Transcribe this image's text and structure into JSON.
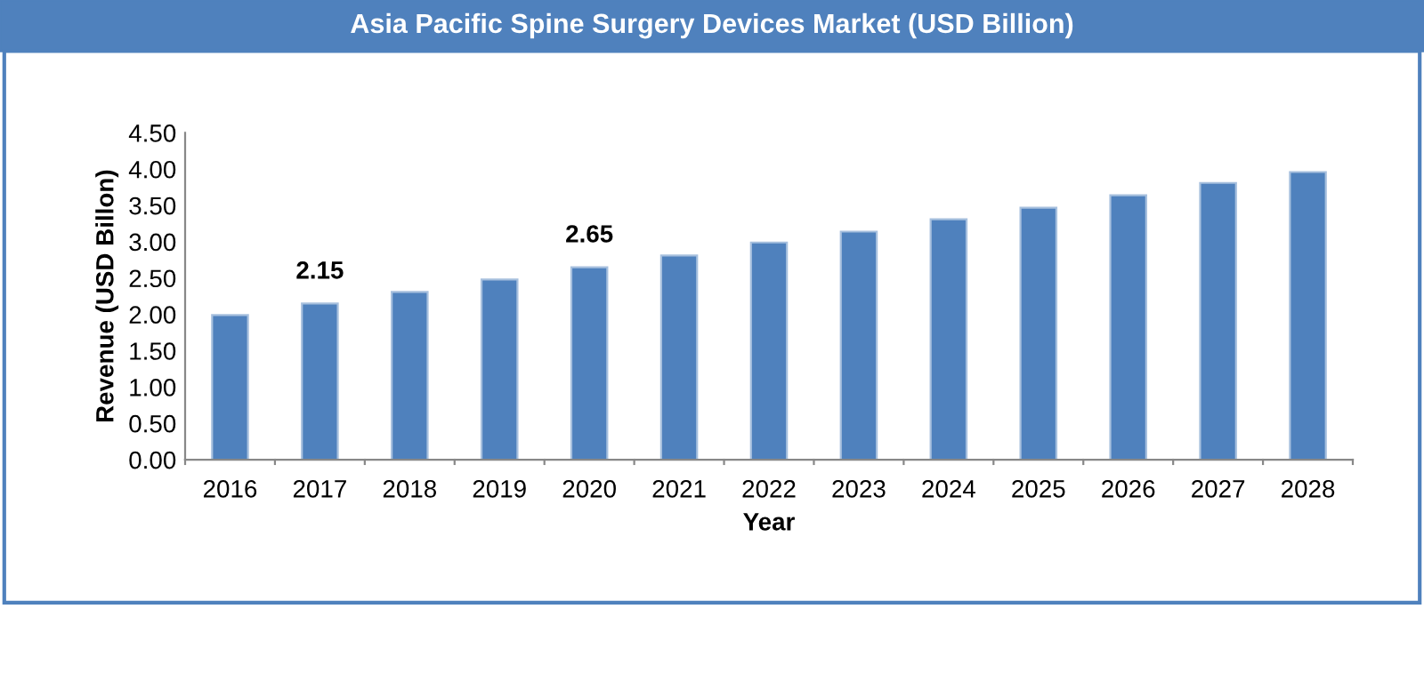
{
  "chart_data": {
    "type": "bar",
    "title": "Asia Pacific Spine Surgery Devices Market (USD Billion)",
    "xlabel": "Year",
    "ylabel": "Revenue (USD Billon)",
    "categories": [
      "2016",
      "2017",
      "2018",
      "2019",
      "2020",
      "2021",
      "2022",
      "2023",
      "2024",
      "2025",
      "2026",
      "2027",
      "2028"
    ],
    "values": [
      1.99,
      2.15,
      2.31,
      2.48,
      2.65,
      2.81,
      2.99,
      3.14,
      3.31,
      3.47,
      3.64,
      3.81,
      3.96
    ],
    "value_labels": [
      null,
      "2.15",
      null,
      null,
      "2.65",
      null,
      null,
      null,
      null,
      null,
      null,
      null,
      null
    ],
    "color": "#4f81bd",
    "ylim": [
      0,
      4.5
    ],
    "yticks": [
      {
        "value": 0,
        "label": "0.00"
      },
      {
        "value": 0.5,
        "label": "0.50"
      },
      {
        "value": 1,
        "label": "1.00"
      },
      {
        "value": 1.5,
        "label": "1.50"
      },
      {
        "value": 2,
        "label": "2.00"
      },
      {
        "value": 2.5,
        "label": "2.50"
      },
      {
        "value": 3,
        "label": "3.00"
      },
      {
        "value": 3.5,
        "label": "3.50"
      },
      {
        "value": 4,
        "label": "4.00"
      },
      {
        "value": 4.5,
        "label": "4.50"
      }
    ],
    "grid": false
  }
}
